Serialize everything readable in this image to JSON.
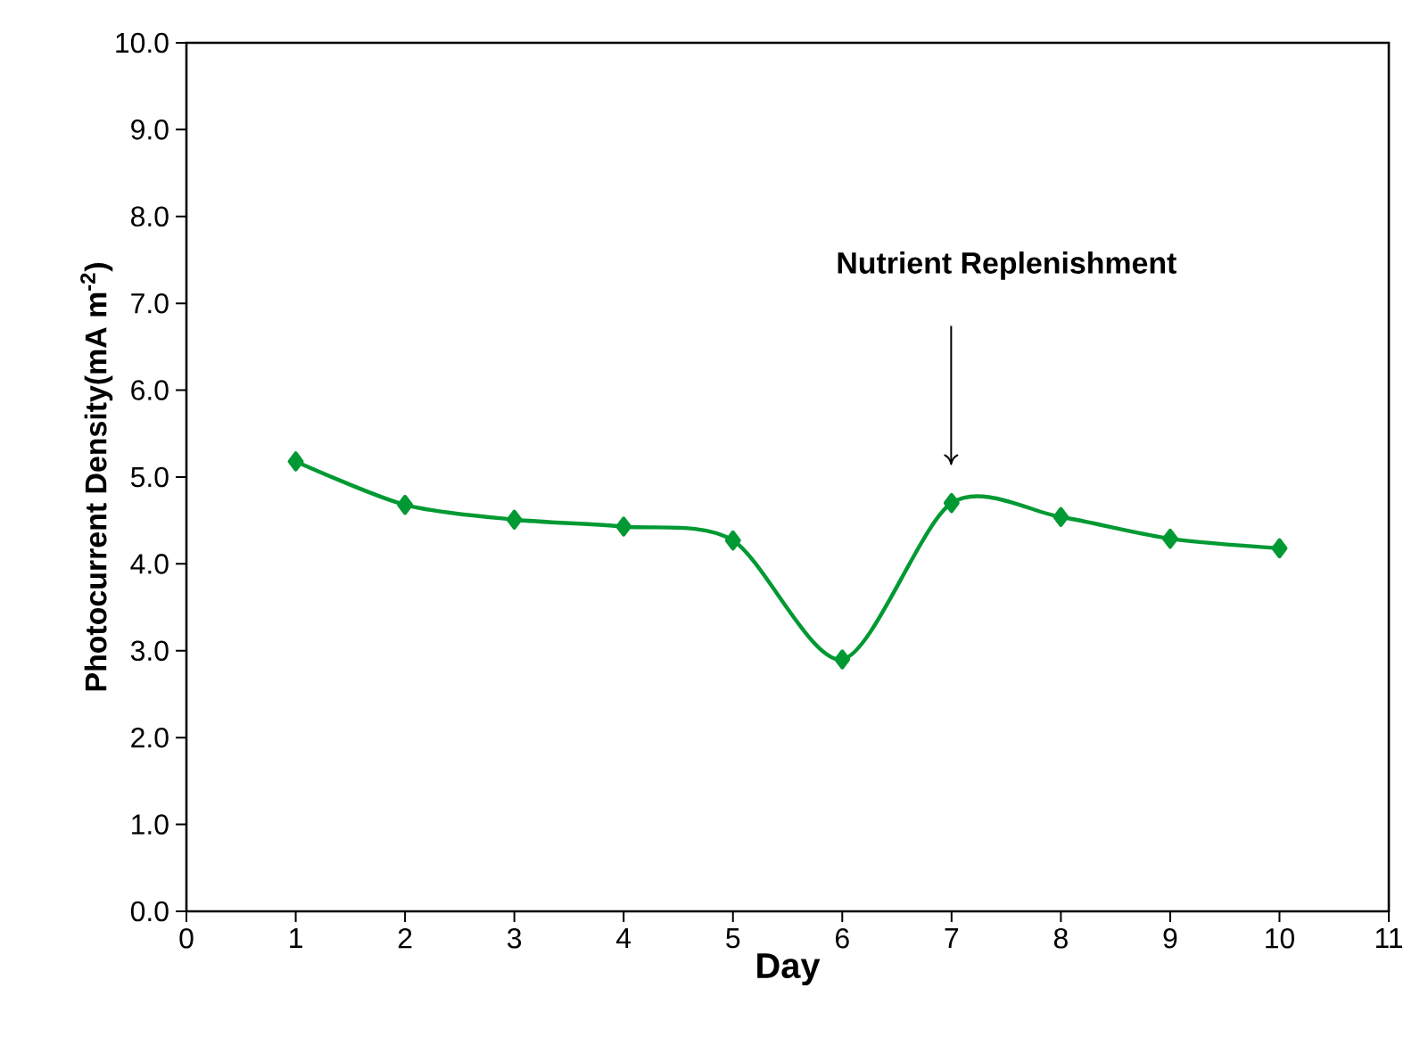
{
  "chart_data": {
    "type": "line",
    "xlabel": "Day",
    "ylabel": "Photocurrent Density(mA m$^{-2}$)",
    "x": [
      1,
      2,
      3,
      4,
      5,
      6,
      7,
      8,
      9,
      10
    ],
    "series": [
      {
        "color": "#009933",
        "values": [
          5.18,
          4.68,
          4.51,
          4.43,
          4.27,
          2.9,
          4.7,
          4.54,
          4.29,
          4.18
        ]
      }
    ],
    "xlim": [
      0,
      11
    ],
    "xticks": [
      0,
      1,
      2,
      3,
      4,
      5,
      6,
      7,
      8,
      9,
      10,
      11
    ],
    "ylim": [
      0,
      10
    ],
    "yticks": [
      {
        "value": 0,
        "label": "0.0"
      },
      {
        "value": 1,
        "label": "1.0"
      },
      {
        "value": 2,
        "label": "2.0"
      },
      {
        "value": 3,
        "label": "3.0"
      },
      {
        "value": 4,
        "label": "4.0"
      },
      {
        "value": 5,
        "label": "5.0"
      },
      {
        "value": 6,
        "label": "6.0"
      },
      {
        "value": 7,
        "label": "7.0"
      },
      {
        "value": 8,
        "label": "8.0"
      },
      {
        "value": 9,
        "label": "9.0"
      },
      {
        "value": 10,
        "label": "10.0"
      }
    ],
    "marker": "diamond",
    "line_style": "solid",
    "annotations": [
      "Nutrient Replenishment"
    ]
  }
}
